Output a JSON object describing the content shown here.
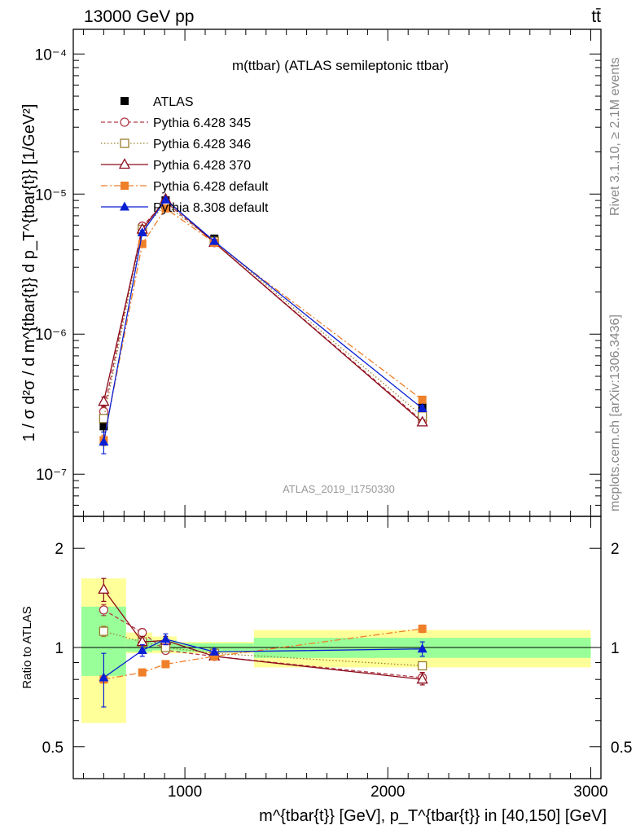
{
  "header": {
    "energy": "13000 GeV pp",
    "process": "tt̄"
  },
  "side_labels": {
    "rivet": "Rivet 3.1.10, ≥ 2.1M events",
    "mcplots": "mcplots.cern.ch [arXiv:1306.3436]"
  },
  "chart_data": [
    {
      "type": "scatter",
      "title": "m(ttbar) (ATLAS semileptonic ttbar)",
      "watermark": "ATLAS_2019_I1750330",
      "ylabel": "1 / σ d²σ / d m^{tbar{t}} d p_T^{tbar{t}} [1/GeV²]",
      "yscale": "log",
      "ylim": [
        5e-08,
        0.00015
      ],
      "xlim": [
        450,
        3050
      ],
      "yticks": [
        {
          "value": 1e-07,
          "label": "10⁻⁷"
        },
        {
          "value": 1e-06,
          "label": "10⁻⁶"
        },
        {
          "value": 1e-05,
          "label": "10⁻⁵"
        },
        {
          "value": 0.0001,
          "label": "10⁻⁴"
        }
      ],
      "legend_position": "top-left",
      "series": [
        {
          "name": "ATLAS",
          "color": "#000000",
          "marker": "square-filled",
          "dash": "none",
          "x": [
            600,
            790,
            905,
            1145,
            2170
          ],
          "y": [
            2.2e-07,
            5.4e-06,
            9e-06,
            4.8e-06,
            3e-07
          ],
          "yerr": [
            [
              2e-07,
              2.4e-07
            ],
            [
              5.2e-06,
              5.6e-06
            ],
            [
              8.8e-06,
              9.3e-06
            ],
            [
              4.7e-06,
              4.9e-06
            ],
            [
              2.9e-07,
              3.1e-07
            ]
          ]
        },
        {
          "name": "Pythia 6.428 345",
          "color": "#b03a48",
          "marker": "circle-open",
          "dash": "5,3",
          "x": [
            600,
            790,
            905,
            1145,
            2170
          ],
          "y": [
            2.8e-07,
            5.9e-06,
            8.8e-06,
            4.5e-06,
            2.4e-07
          ],
          "yerr": [
            [
              2.6e-07,
              3e-07
            ],
            [
              5.8e-06,
              6e-06
            ],
            [
              8.7e-06,
              8.9e-06
            ],
            [
              4.4e-06,
              4.6e-06
            ],
            [
              2.3e-07,
              2.5e-07
            ]
          ]
        },
        {
          "name": "Pythia 6.428 346",
          "color": "#9a7d2e",
          "marker": "square-open",
          "dash": "1.5,2.5",
          "x": [
            600,
            790,
            905,
            1145,
            2170
          ],
          "y": [
            2.5e-07,
            5.6e-06,
            8.4e-06,
            4.6e-06,
            2.6e-07
          ],
          "yerr": [
            [
              2.35e-07,
              2.65e-07
            ],
            [
              5.5e-06,
              5.7e-06
            ],
            [
              8.3e-06,
              8.5e-06
            ],
            [
              4.5e-06,
              4.7e-06
            ],
            [
              2.5e-07,
              2.7e-07
            ]
          ]
        },
        {
          "name": "Pythia 6.428 370",
          "color": "#8b0a1a",
          "marker": "triangle-open",
          "dash": "none",
          "x": [
            600,
            790,
            905,
            1145,
            2170
          ],
          "y": [
            3.3e-07,
            5.6e-06,
            9.2e-06,
            4.5e-06,
            2.35e-07
          ],
          "yerr": [
            [
              3.05e-07,
              3.55e-07
            ],
            [
              5.5e-06,
              5.7e-06
            ],
            [
              9.1e-06,
              9.3e-06
            ],
            [
              4.4e-06,
              4.6e-06
            ],
            [
              2.25e-07,
              2.45e-07
            ]
          ]
        },
        {
          "name": "Pythia 6.428 default",
          "color": "#f07f2a",
          "marker": "square-filled",
          "dash": "8,3,2,3",
          "x": [
            600,
            790,
            905,
            1145,
            2170
          ],
          "y": [
            1.75e-07,
            4.4e-06,
            7.9e-06,
            4.5e-06,
            3.4e-07
          ],
          "yerr": [
            [
              1.6e-07,
              1.9e-07
            ],
            [
              4.3e-06,
              4.5e-06
            ],
            [
              7.8e-06,
              8e-06
            ],
            [
              4.4e-06,
              4.6e-06
            ],
            [
              3.3e-07,
              3.5e-07
            ]
          ]
        },
        {
          "name": "Pythia 8.308 default",
          "color": "#0a1fd4",
          "marker": "triangle-filled",
          "dash": "none",
          "x": [
            600,
            790,
            905,
            1145,
            2170
          ],
          "y": [
            1.7e-07,
            5.3e-06,
            9.1e-06,
            4.6e-06,
            2.95e-07
          ],
          "yerr": [
            [
              1.4e-07,
              2e-07
            ],
            [
              5.1e-06,
              5.5e-06
            ],
            [
              8.9e-06,
              9.3e-06
            ],
            [
              4.5e-06,
              4.7e-06
            ],
            [
              2.8e-07,
              3.1e-07
            ]
          ]
        }
      ]
    },
    {
      "type": "scatter",
      "ylabel": "Ratio to ATLAS",
      "yscale": "log",
      "ylim": [
        0.4,
        2.5
      ],
      "xlim": [
        450,
        3050
      ],
      "yticks": [
        {
          "value": 0.5,
          "label": "0.5"
        },
        {
          "value": 1,
          "label": "1"
        },
        {
          "value": 2,
          "label": "2"
        }
      ],
      "xticks": [
        {
          "value": 1000,
          "label": "1000"
        },
        {
          "value": 2000,
          "label": "2000"
        },
        {
          "value": 3000,
          "label": "3000"
        }
      ],
      "xlabel": "m^{tbar{t}} [GeV], p_T^{tbar{t}} in [40,150] [GeV]",
      "bands": [
        {
          "x0": 490,
          "x1": 710,
          "yellow": [
            0.59,
            1.62
          ],
          "green": [
            0.82,
            1.33
          ]
        },
        {
          "x0": 710,
          "x1": 840,
          "yellow": [
            0.96,
            1.11
          ],
          "green": [
            0.97,
            1.06
          ]
        },
        {
          "x0": 840,
          "x1": 960,
          "yellow": [
            0.96,
            1.08
          ],
          "green": [
            0.98,
            1.05
          ]
        },
        {
          "x0": 960,
          "x1": 1340,
          "yellow": [
            0.96,
            1.04
          ],
          "green": [
            0.97,
            1.03
          ]
        },
        {
          "x0": 1340,
          "x1": 3000,
          "yellow": [
            0.87,
            1.13
          ],
          "green": [
            0.93,
            1.07
          ]
        }
      ],
      "series": [
        {
          "name": "Pythia 6.428 345",
          "color": "#b03a48",
          "marker": "circle-open",
          "dash": "5,3",
          "x": [
            600,
            790,
            905,
            1145,
            2170
          ],
          "y": [
            1.3,
            1.11,
            0.98,
            0.94,
            0.81
          ],
          "yerr": [
            [
              1.25,
              1.35
            ],
            [
              1.08,
              1.14
            ],
            [
              0.96,
              1.0
            ],
            [
              0.93,
              0.95
            ],
            [
              0.79,
              0.83
            ]
          ]
        },
        {
          "name": "Pythia 6.428 346",
          "color": "#9a7d2e",
          "marker": "square-open",
          "dash": "1.5,2.5",
          "x": [
            600,
            790,
            905,
            1145,
            2170
          ],
          "y": [
            1.12,
            1.04,
            1.0,
            0.96,
            0.88
          ],
          "yerr": [
            [
              1.08,
              1.16
            ],
            [
              1.02,
              1.06
            ],
            [
              0.98,
              1.02
            ],
            [
              0.95,
              0.97
            ],
            [
              0.86,
              0.9
            ]
          ]
        },
        {
          "name": "Pythia 6.428 370",
          "color": "#8b0a1a",
          "marker": "triangle-open",
          "dash": "none",
          "x": [
            600,
            790,
            905,
            1145,
            2170
          ],
          "y": [
            1.5,
            1.04,
            1.05,
            0.94,
            0.8
          ],
          "yerr": [
            [
              1.38,
              1.62
            ],
            [
              1.0,
              1.08
            ],
            [
              1.02,
              1.08
            ],
            [
              0.93,
              0.95
            ],
            [
              0.77,
              0.84
            ]
          ]
        },
        {
          "name": "Pythia 6.428 default",
          "color": "#f07f2a",
          "marker": "square-filled",
          "dash": "8,3,2,3",
          "x": [
            600,
            790,
            905,
            1145,
            2170
          ],
          "y": [
            0.8,
            0.84,
            0.89,
            0.94,
            1.14
          ],
          "yerr": [
            [
              0.78,
              0.82
            ],
            [
              0.82,
              0.86
            ],
            [
              0.87,
              0.91
            ],
            [
              0.93,
              0.95
            ],
            [
              1.11,
              1.17
            ]
          ]
        },
        {
          "name": "Pythia 8.308 default",
          "color": "#0a1fd4",
          "marker": "triangle-filled",
          "dash": "none",
          "x": [
            600,
            790,
            905,
            1145,
            2170
          ],
          "y": [
            0.81,
            0.98,
            1.06,
            0.97,
            0.99
          ],
          "yerr": [
            [
              0.66,
              0.96
            ],
            [
              0.94,
              1.02
            ],
            [
              1.02,
              1.1
            ],
            [
              0.95,
              0.99
            ],
            [
              0.94,
              1.04
            ]
          ]
        }
      ]
    }
  ]
}
